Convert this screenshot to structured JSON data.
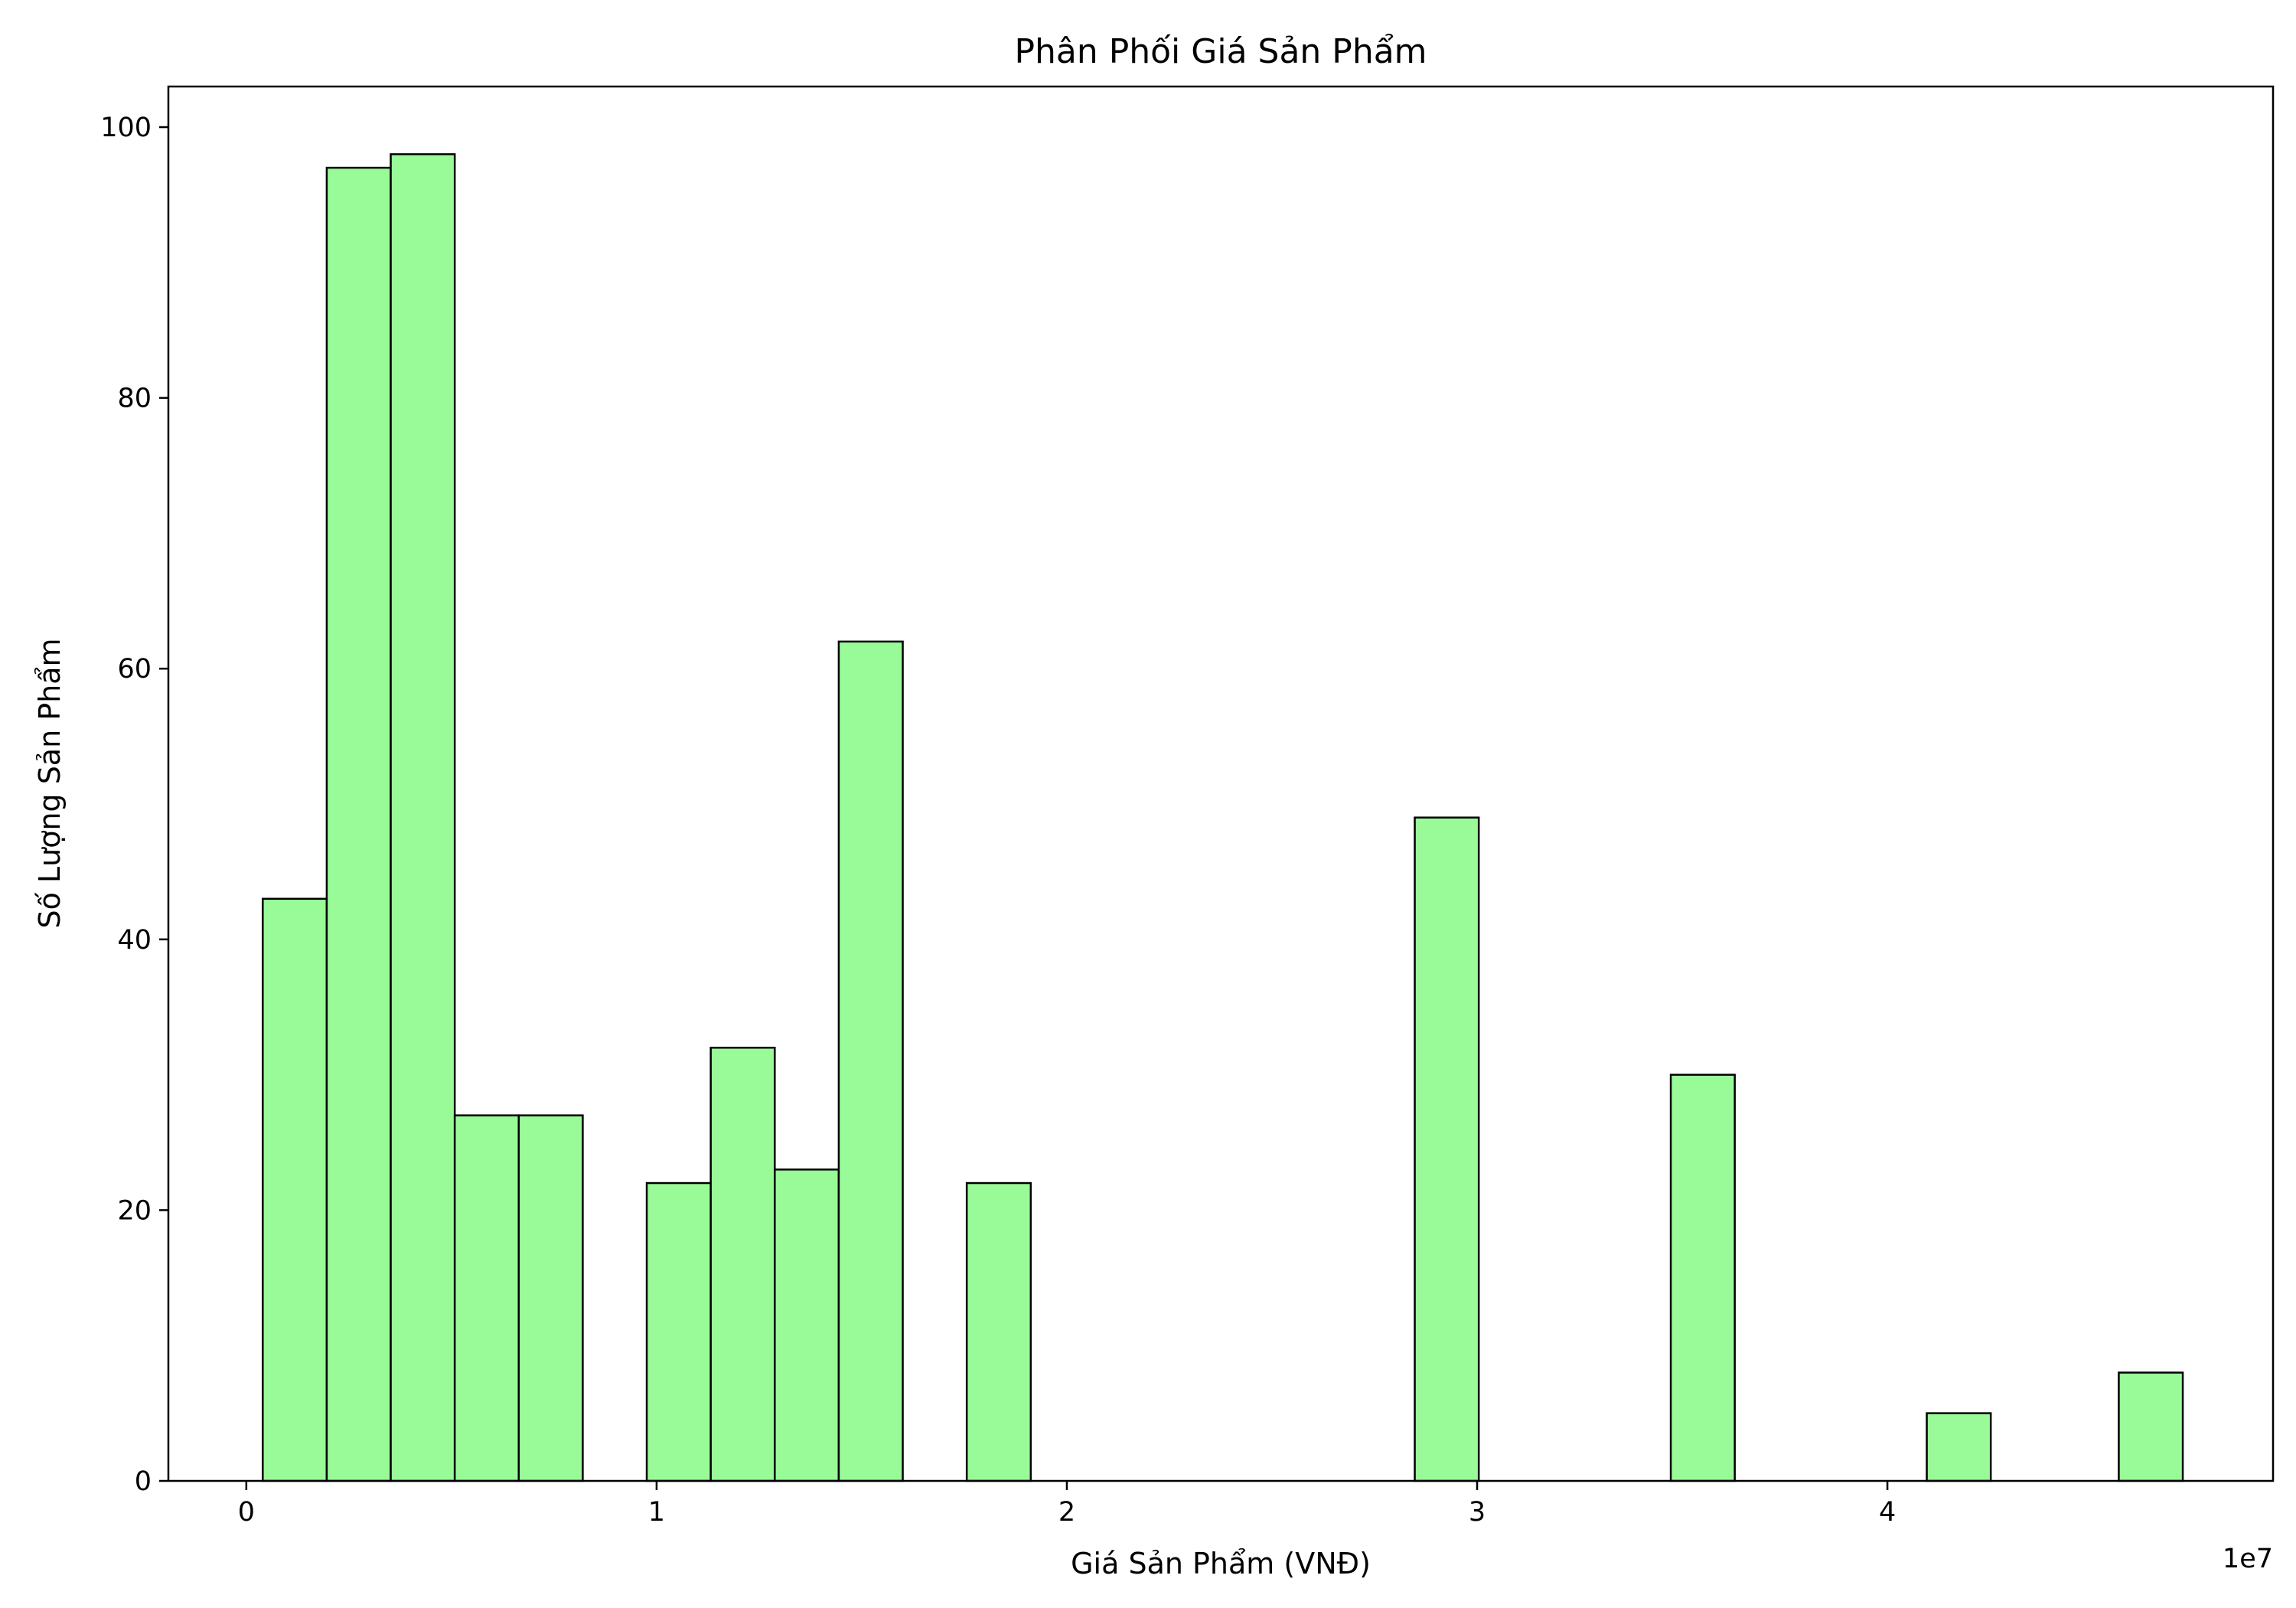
{
  "chart_data": {
    "type": "bar",
    "subtype": "histogram",
    "title": "Phân Phối Giá Sản Phẩm",
    "xlabel": "Giá Sản Phẩm (VNĐ)",
    "ylabel": "Số Lượng Sản Phẩm",
    "x_offset_label": "1e7",
    "xlim": [
      -1900000,
      49400000
    ],
    "ylim": [
      0,
      103
    ],
    "xticks": [
      0,
      10000000,
      20000000,
      30000000,
      40000000
    ],
    "xtick_labels": [
      "0",
      "1",
      "2",
      "3",
      "4"
    ],
    "yticks": [
      0,
      20,
      40,
      60,
      80,
      100
    ],
    "ytick_labels": [
      "0",
      "20",
      "40",
      "60",
      "80",
      "100"
    ],
    "bin_width": 1560000,
    "bins": [
      {
        "start": 400000,
        "count": 43
      },
      {
        "start": 1960000,
        "count": 97
      },
      {
        "start": 3520000,
        "count": 98
      },
      {
        "start": 5080000,
        "count": 27
      },
      {
        "start": 6640000,
        "count": 27
      },
      {
        "start": 8200000,
        "count": 0
      },
      {
        "start": 9760000,
        "count": 22
      },
      {
        "start": 11320000,
        "count": 32
      },
      {
        "start": 12880000,
        "count": 23
      },
      {
        "start": 14440000,
        "count": 62
      },
      {
        "start": 16000000,
        "count": 0
      },
      {
        "start": 17560000,
        "count": 22
      },
      {
        "start": 19120000,
        "count": 0
      },
      {
        "start": 20680000,
        "count": 0
      },
      {
        "start": 22240000,
        "count": 0
      },
      {
        "start": 23800000,
        "count": 0
      },
      {
        "start": 25360000,
        "count": 0
      },
      {
        "start": 26920000,
        "count": 0
      },
      {
        "start": 28480000,
        "count": 49
      },
      {
        "start": 30040000,
        "count": 0
      },
      {
        "start": 31600000,
        "count": 0
      },
      {
        "start": 33160000,
        "count": 0
      },
      {
        "start": 34720000,
        "count": 30
      },
      {
        "start": 36280000,
        "count": 0
      },
      {
        "start": 37840000,
        "count": 0
      },
      {
        "start": 39400000,
        "count": 0
      },
      {
        "start": 40960000,
        "count": 5
      },
      {
        "start": 42520000,
        "count": 0
      },
      {
        "start": 44080000,
        "count": 0
      },
      {
        "start": 45640000,
        "count": 8
      }
    ],
    "colors": {
      "bar_fill": "#98fb98",
      "bar_edge": "#000000",
      "axes": "#000000",
      "background": "#ffffff"
    },
    "grid": false,
    "legend": "none"
  }
}
